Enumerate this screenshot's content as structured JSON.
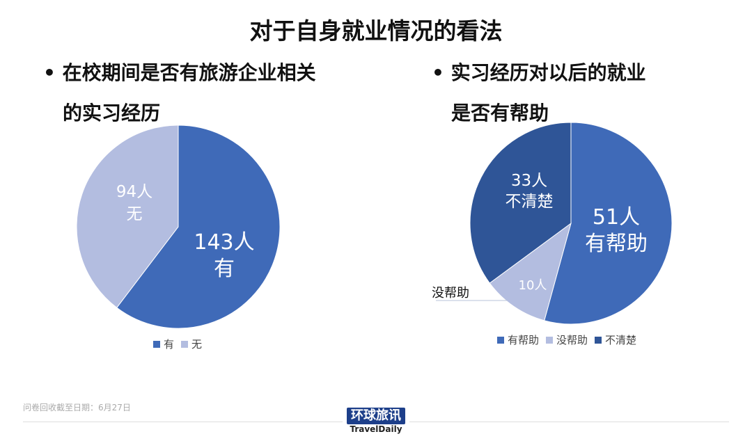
{
  "title": "对于自身就业情况的看法",
  "chart_data": [
    {
      "type": "pie",
      "title": "在校期间是否有旅游企业相关的实习经历",
      "title_lines": [
        "在校期间是否有旅游企业相关",
        "的实习经历"
      ],
      "categories": [
        "有",
        "无"
      ],
      "values": [
        143,
        94
      ],
      "unit": "人",
      "data_labels": [
        "143人",
        "94人"
      ],
      "colors": [
        "#3f6ab8",
        "#b3bde0"
      ],
      "legend": "bottom"
    },
    {
      "type": "pie",
      "title": "实习经历对以后的就业是否有帮助",
      "title_lines": [
        "实习经历对以后的就业",
        "是否有帮助"
      ],
      "categories": [
        "有帮助",
        "没帮助",
        "不清楚"
      ],
      "values": [
        51,
        10,
        33
      ],
      "unit": "人",
      "data_labels": [
        "51人",
        "10人",
        "33人"
      ],
      "colors": [
        "#3f6ab8",
        "#b3bde0",
        "#2f5597"
      ],
      "legend": "bottom"
    }
  ],
  "footer": {
    "note": "问卷回收截至日期：6月27日",
    "logo_cn": "环球旅讯",
    "logo_en": "TravelDaily"
  }
}
